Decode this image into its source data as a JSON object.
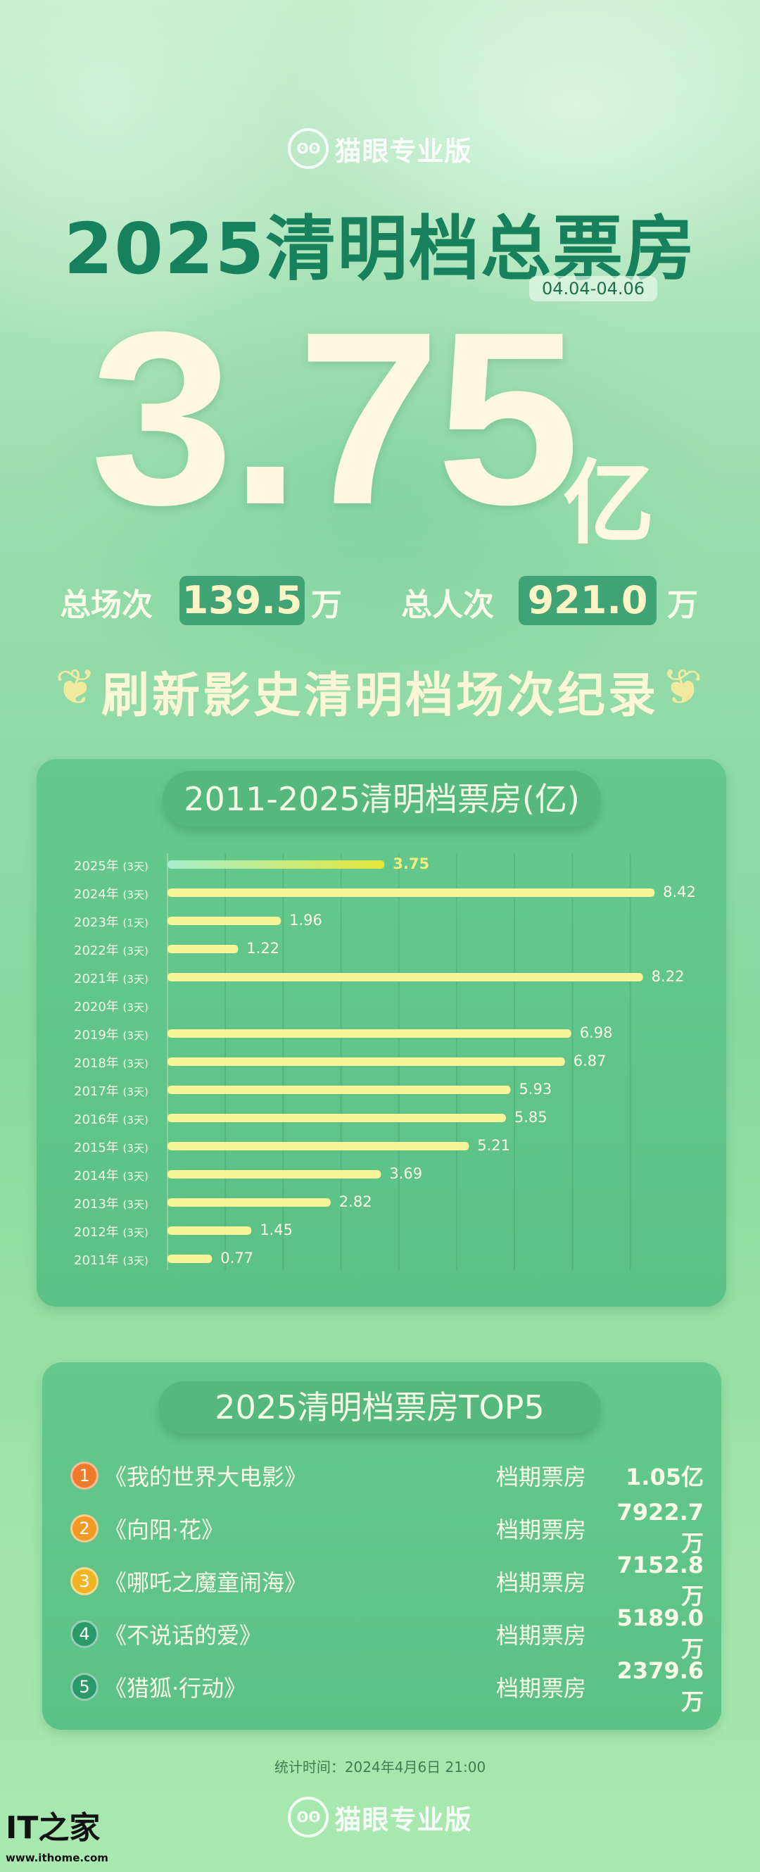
{
  "brand": {
    "name": "猫眼专业版",
    "icon": "cat-face-icon"
  },
  "header": {
    "title": "2025清明档总票房",
    "date_range": "04.04-04.06",
    "total_value": "3.75",
    "total_unit": "亿"
  },
  "stats": {
    "screenings_label": "总场次",
    "screenings_value": "139.5",
    "screenings_unit": "万",
    "admissions_label": "总人次",
    "admissions_value": "921.0",
    "admissions_unit": "万"
  },
  "slogan": "刷新影史清明档场次纪录",
  "chart_data": {
    "type": "bar",
    "orientation": "horizontal",
    "title": "2011-2025清明档票房(亿)",
    "categories": [
      "2025年",
      "2024年",
      "2023年",
      "2022年",
      "2021年",
      "2020年",
      "2019年",
      "2018年",
      "2017年",
      "2016年",
      "2015年",
      "2014年",
      "2013年",
      "2012年",
      "2011年"
    ],
    "days": [
      "(3天)",
      "(3天)",
      "(1天)",
      "(3天)",
      "(3天)",
      "(3天)",
      "(3天)",
      "(3天)",
      "(3天)",
      "(3天)",
      "(3天)",
      "(3天)",
      "(3天)",
      "(3天)",
      "(3天)"
    ],
    "values": [
      3.75,
      8.42,
      1.96,
      1.22,
      8.22,
      null,
      6.98,
      6.87,
      5.93,
      5.85,
      5.21,
      3.69,
      2.82,
      1.45,
      0.77
    ],
    "value_labels": [
      "3.75",
      "8.42",
      "1.96",
      "1.22",
      "8.22",
      "",
      "6.98",
      "6.87",
      "5.93",
      "5.85",
      "5.21",
      "3.69",
      "2.82",
      "1.45",
      "0.77"
    ],
    "xlim": [
      0,
      9
    ],
    "grid": true,
    "colors": {
      "bar": "#f6f59a",
      "highlight_start": "#a6f0cc",
      "highlight_end": "#e6e63a",
      "highlight_label": "#f3ef7a"
    }
  },
  "top5": {
    "title": "2025清明档票房TOP5",
    "items": [
      {
        "rank": "1",
        "title": "《我的世界大电影》",
        "label": "档期票房",
        "value": "1.05亿",
        "color": "#ee7a2c"
      },
      {
        "rank": "2",
        "title": "《向阳·花》",
        "label": "档期票房",
        "value": "7922.7万",
        "color": "#f29a24"
      },
      {
        "rank": "3",
        "title": "《哪吒之魔童闹海》",
        "label": "档期票房",
        "value": "7152.8万",
        "color": "#f2b424"
      },
      {
        "rank": "4",
        "title": "《不说话的爱》",
        "label": "档期票房",
        "value": "5189.0万",
        "color": "#2b9a6a"
      },
      {
        "rank": "5",
        "title": "《猎狐·行动》",
        "label": "档期票房",
        "value": "2379.6万",
        "color": "#2b9a6a"
      }
    ]
  },
  "footer": {
    "stat_time": "统计时间：2024年4月6日 21:00",
    "brand": "猫眼专业版",
    "watermark": "IT之家",
    "watermark_url": "www.ithome.com"
  }
}
